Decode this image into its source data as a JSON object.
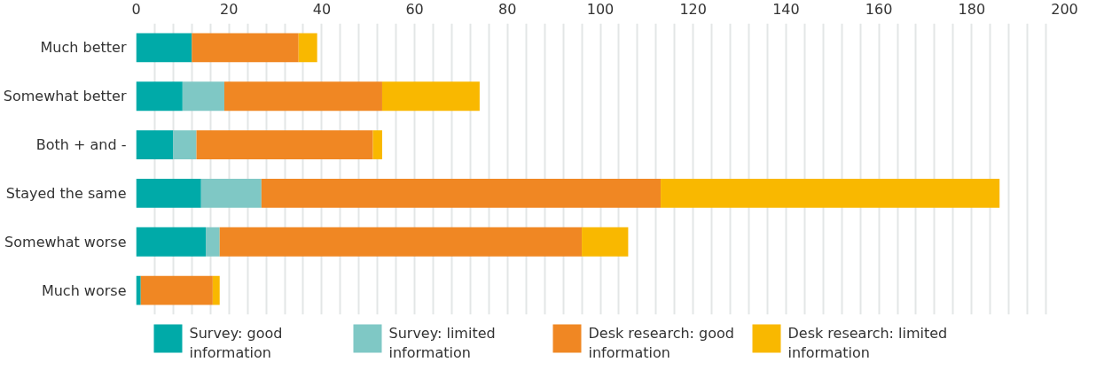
{
  "chart_data": {
    "type": "bar",
    "orientation": "horizontal",
    "stacked": true,
    "categories": [
      "Much better",
      "Somewhat better",
      "Both + and -",
      "Stayed the same",
      "Somewhat worse",
      "Much worse"
    ],
    "series": [
      {
        "name": "Survey: good information",
        "color": "#00aaa8",
        "values": [
          12,
          10,
          8,
          14,
          15,
          1
        ]
      },
      {
        "name": "Survey: limited information",
        "color": "#7fc8c5",
        "values": [
          0,
          9,
          5,
          13,
          3,
          0
        ]
      },
      {
        "name": "Desk research: good information",
        "color": "#f08723",
        "values": [
          23,
          34,
          38,
          86,
          78,
          15.5
        ]
      },
      {
        "name": "Desk research: limited information",
        "color": "#f9b800",
        "values": [
          4,
          21,
          2,
          73,
          10,
          1.5
        ]
      }
    ],
    "xlim": [
      0,
      200
    ],
    "xticks": [
      0,
      {
        "value": 4,
        "label": null
      },
      {
        "value": 8,
        "label": null
      },
      {
        "value": 12,
        "label": null
      },
      {
        "value": 16,
        "label": null
      },
      20,
      {
        "value": 24,
        "label": null
      },
      {
        "value": 28,
        "label": null
      },
      {
        "value": 32,
        "label": null
      },
      {
        "value": 36,
        "label": null
      },
      40,
      {
        "value": 44,
        "label": null
      },
      {
        "value": 48,
        "label": null
      },
      {
        "value": 52,
        "label": null
      },
      {
        "value": 56,
        "label": null
      },
      60,
      {
        "value": 64,
        "label": null
      },
      {
        "value": 68,
        "label": null
      },
      {
        "value": 72,
        "label": null
      },
      {
        "value": 76,
        "label": null
      },
      80,
      {
        "value": 84,
        "label": null
      },
      {
        "value": 88,
        "label": null
      },
      {
        "value": 92,
        "label": null
      },
      {
        "value": 96,
        "label": null
      },
      100,
      {
        "value": 104,
        "label": null
      },
      {
        "value": 108,
        "label": null
      },
      {
        "value": 112,
        "label": null
      },
      {
        "value": 116,
        "label": null
      },
      120,
      {
        "value": 124,
        "label": null
      },
      {
        "value": 128,
        "label": null
      },
      {
        "value": 132,
        "label": null
      },
      {
        "value": 136,
        "label": null
      },
      140,
      {
        "value": 144,
        "label": null
      },
      {
        "value": 148,
        "label": null
      },
      {
        "value": 152,
        "label": null
      },
      {
        "value": 156,
        "label": null
      },
      160,
      {
        "value": 164,
        "label": null
      },
      {
        "value": 168,
        "label": null
      },
      {
        "value": 172,
        "label": null
      },
      {
        "value": 176,
        "label": null
      },
      180,
      {
        "value": 184,
        "label": null
      },
      {
        "value": 188,
        "label": null
      },
      {
        "value": 192,
        "label": null
      },
      {
        "value": 196,
        "label": null
      },
      200
    ],
    "grid": "x",
    "legend": "bottom"
  }
}
